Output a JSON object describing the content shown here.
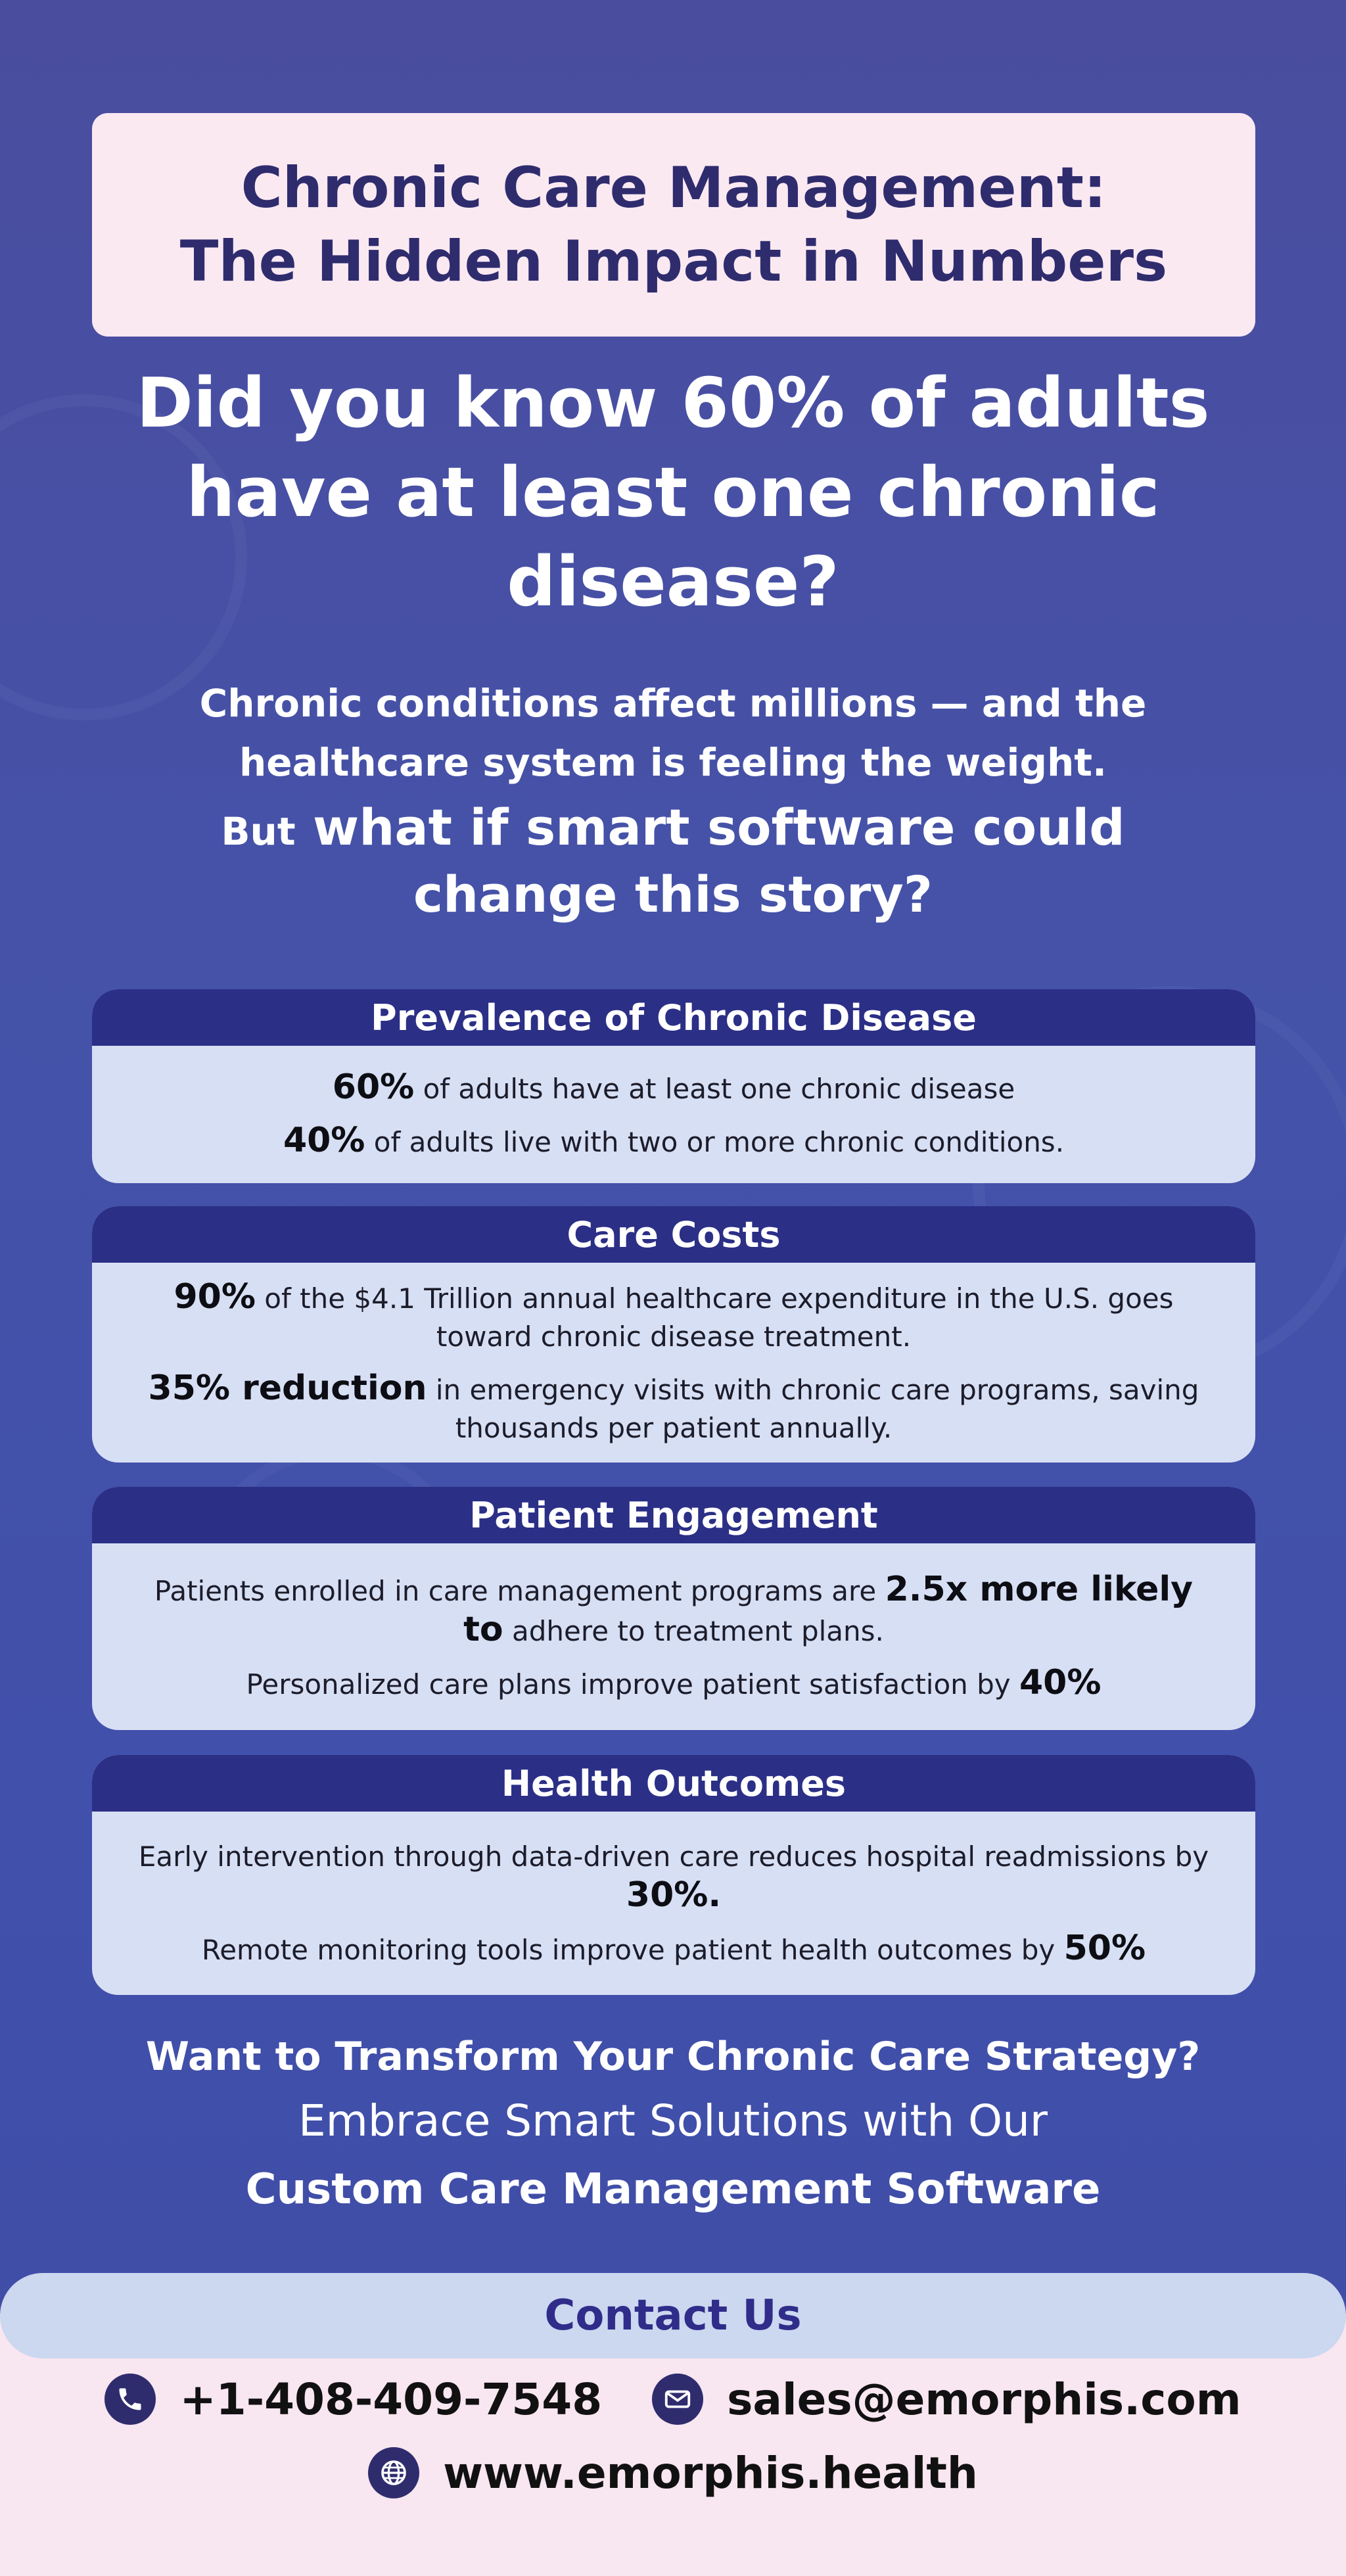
{
  "title": {
    "line1": "Chronic Care Management:",
    "line2": "The Hidden Impact in Numbers"
  },
  "hero": {
    "line1": "Did you know 60% of adults",
    "line2": "have at least one chronic",
    "line3": "disease?"
  },
  "intro": {
    "line1": "Chronic conditions affect millions — and the",
    "line2": "healthcare system is feeling the weight.",
    "question_prefix": "But",
    "question_line1": "what if smart software could",
    "question_line2": "change this story?"
  },
  "cards": [
    {
      "heading": "Prevalence of Chronic Disease",
      "stats": [
        {
          "pre": "",
          "bold": "60%",
          "post": " of adults have at least one chronic disease"
        },
        {
          "pre": "",
          "bold": "40%",
          "post": " of adults live with two or more chronic conditions."
        }
      ]
    },
    {
      "heading": "Care Costs",
      "stats": [
        {
          "pre": "",
          "bold": "90%",
          "post": " of the $4.1 Trillion annual healthcare expenditure in the U.S. goes toward chronic disease treatment."
        },
        {
          "pre": "",
          "bold": "35% reduction",
          "post": " in emergency visits with chronic care programs, saving thousands per patient annually."
        }
      ]
    },
    {
      "heading": "Patient Engagement",
      "stats": [
        {
          "pre": "Patients enrolled in care management programs are ",
          "bold": "2.5x more likely to",
          "post": " adhere to treatment plans."
        },
        {
          "pre": "Personalized care plans improve patient satisfaction by ",
          "bold": "40%",
          "post": ""
        }
      ]
    },
    {
      "heading": "Health Outcomes",
      "stats": [
        {
          "pre": "Early intervention through data-driven care reduces hospital readmissions by ",
          "bold": "30%.",
          "post": ""
        },
        {
          "pre": "Remote monitoring tools improve patient health outcomes by ",
          "bold": "50%",
          "post": ""
        }
      ]
    }
  ],
  "cta": {
    "line1": "Want to Transform Your Chronic Care Strategy?",
    "line2": "Embrace Smart Solutions with Our",
    "line3": "Custom Care Management Software"
  },
  "contact": {
    "label": "Contact Us",
    "phone": "+1-408-409-7548",
    "email": "sales@emorphis.com",
    "website": "www.emorphis.health",
    "phone_icon": "phone-icon",
    "email_icon": "envelope-icon",
    "web_icon": "globe-icon"
  },
  "colors": {
    "background": "#4552a8",
    "title_box": "#fbe9f2",
    "title_text": "#2f2c6e",
    "card_header": "#2b2f86",
    "card_body": "#d7dff4",
    "contact_pill": "#ccd7f0",
    "footer": "#f8e6f0"
  }
}
